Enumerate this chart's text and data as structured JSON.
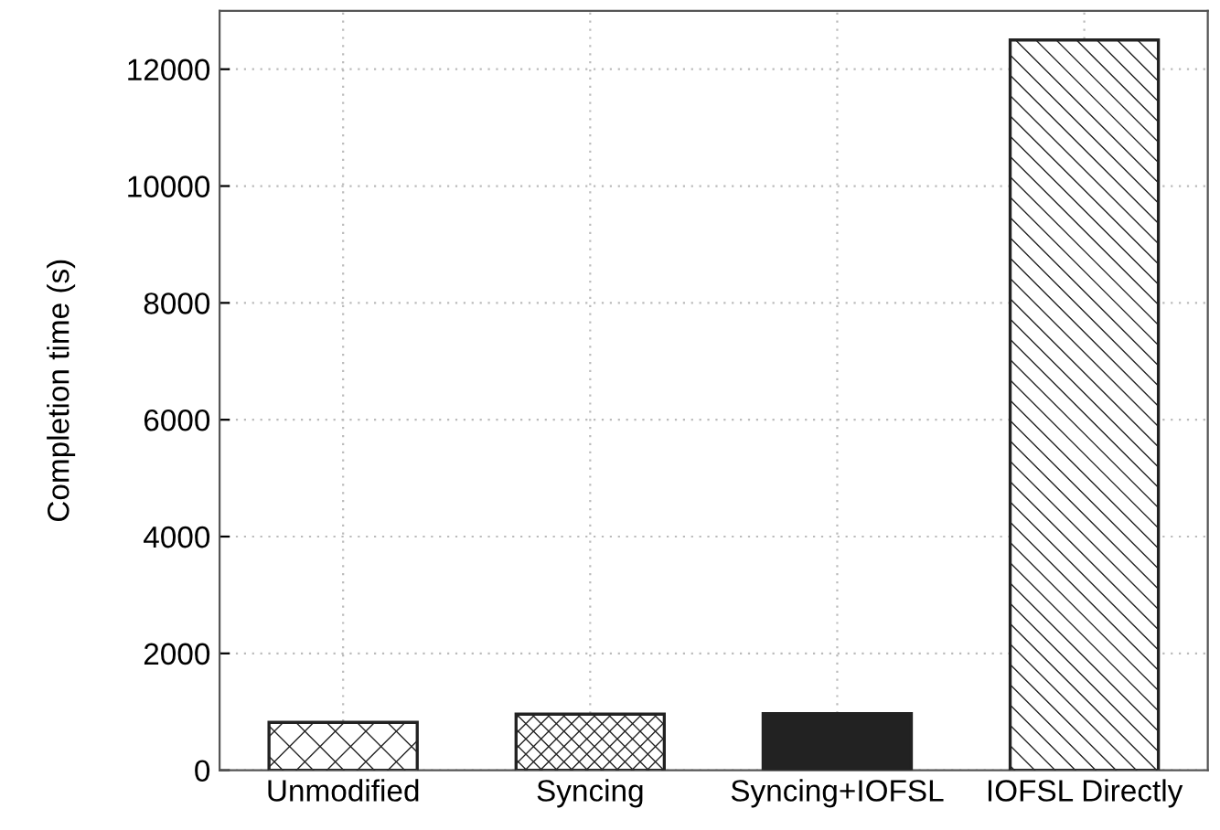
{
  "chart_data": {
    "type": "bar",
    "ylabel": "Completion time (s)",
    "categories": [
      "Unmodified",
      "Syncing",
      "Syncing+IOFSL",
      "IOFSL Directly"
    ],
    "values": [
      820,
      960,
      970,
      12500
    ],
    "colors": [
      "#222222",
      "#222222",
      "#222222",
      "#222222"
    ],
    "ylim": [
      0,
      13000
    ],
    "yticks": [
      0,
      2000,
      4000,
      6000,
      8000,
      10000,
      12000
    ],
    "grid": true
  }
}
